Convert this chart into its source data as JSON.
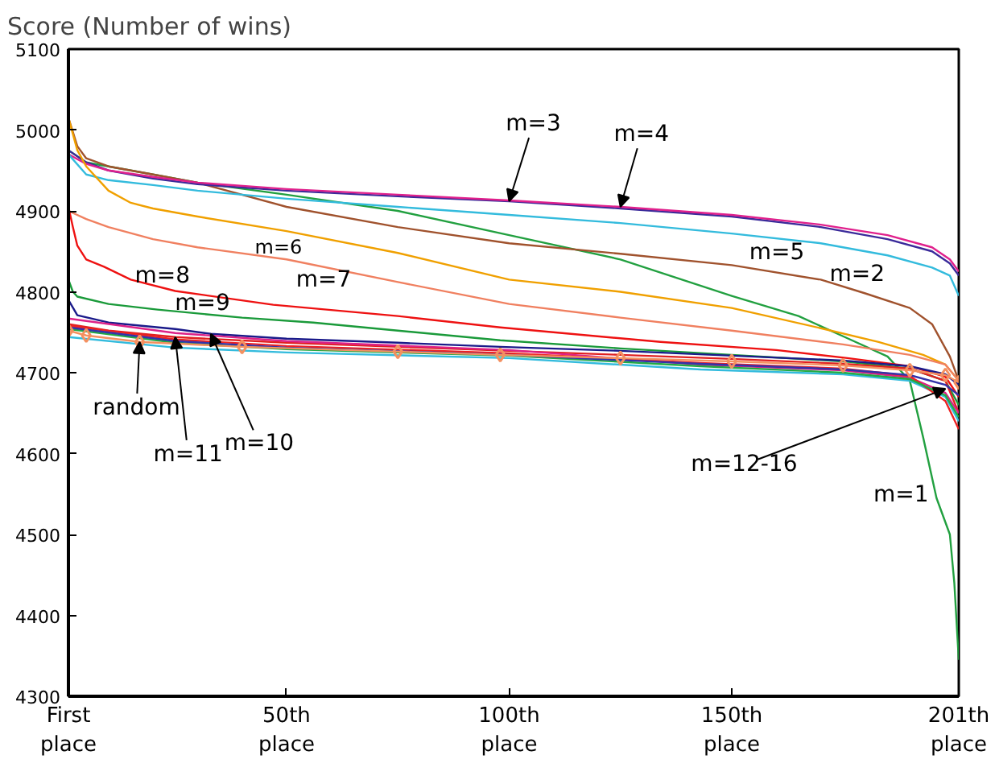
{
  "chart_data": {
    "type": "line",
    "ylabel": "Score (Number of wins)",
    "xlim": [
      1,
      201
    ],
    "xticks": [
      {
        "value": 1,
        "label": "First\nplace"
      },
      {
        "value": 50,
        "label": "50th\nplace"
      },
      {
        "value": 100,
        "label": "100th\nplace"
      },
      {
        "value": 150,
        "label": "150th\nplace"
      },
      {
        "value": 201,
        "label": "201th\nplace"
      }
    ],
    "ylim": [
      4300,
      5100
    ],
    "yticks": [
      4300,
      4400,
      4500,
      4600,
      4700,
      4800,
      4900,
      5000,
      5100
    ],
    "grid": false,
    "line_style": "solid",
    "series": [
      {
        "name": "m=1",
        "color": "#22a040",
        "x": [
          1,
          5,
          10,
          20,
          30,
          50,
          75,
          100,
          125,
          150,
          165,
          175,
          185,
          190,
          193,
          196,
          199,
          200,
          201
        ],
        "values": [
          4975,
          4960,
          4955,
          4945,
          4935,
          4920,
          4900,
          4870,
          4840,
          4795,
          4770,
          4745,
          4720,
          4690,
          4620,
          4545,
          4500,
          4440,
          4345
        ]
      },
      {
        "name": "m=2",
        "color": "#a0522d",
        "x": [
          1,
          3,
          5,
          10,
          20,
          30,
          50,
          75,
          100,
          125,
          150,
          170,
          180,
          190,
          195,
          199,
          201
        ],
        "values": [
          5015,
          4980,
          4965,
          4955,
          4945,
          4935,
          4905,
          4880,
          4860,
          4847,
          4833,
          4815,
          4798,
          4780,
          4760,
          4720,
          4690
        ]
      },
      {
        "name": "m=3",
        "color": "#3a2a9a",
        "x": [
          1,
          5,
          10,
          20,
          30,
          50,
          75,
          100,
          125,
          150,
          170,
          185,
          195,
          199,
          201
        ],
        "values": [
          4975,
          4960,
          4950,
          4940,
          4933,
          4925,
          4918,
          4912,
          4903,
          4893,
          4880,
          4865,
          4850,
          4835,
          4820
        ]
      },
      {
        "name": "m=4",
        "color": "#e0208c",
        "x": [
          1,
          5,
          10,
          20,
          30,
          50,
          75,
          100,
          125,
          150,
          170,
          185,
          195,
          199,
          201
        ],
        "values": [
          4970,
          4958,
          4950,
          4942,
          4935,
          4927,
          4920,
          4913,
          4905,
          4895,
          4883,
          4870,
          4855,
          4840,
          4825
        ]
      },
      {
        "name": "m=5",
        "color": "#33bbdd",
        "x": [
          1,
          5,
          10,
          20,
          30,
          50,
          75,
          100,
          125,
          150,
          170,
          185,
          195,
          199,
          201
        ],
        "values": [
          4970,
          4945,
          4938,
          4932,
          4925,
          4915,
          4905,
          4895,
          4885,
          4872,
          4860,
          4845,
          4830,
          4820,
          4795
        ]
      },
      {
        "name": "m=6",
        "color": "#f0a000",
        "x": [
          1,
          3,
          5,
          10,
          15,
          20,
          30,
          50,
          75,
          100,
          125,
          150,
          170,
          183,
          193,
          198,
          201
        ],
        "values": [
          5015,
          4975,
          4955,
          4925,
          4910,
          4903,
          4893,
          4875,
          4848,
          4815,
          4800,
          4780,
          4755,
          4738,
          4722,
          4710,
          4690
        ]
      },
      {
        "name": "m=7",
        "color": "#f08060",
        "x": [
          1,
          5,
          10,
          20,
          30,
          50,
          75,
          100,
          125,
          150,
          175,
          190,
          198,
          201
        ],
        "values": [
          4900,
          4890,
          4880,
          4865,
          4855,
          4840,
          4812,
          4785,
          4768,
          4752,
          4735,
          4722,
          4710,
          4690
        ]
      },
      {
        "name": "m=8",
        "color": "#ee1111",
        "x": [
          1,
          2,
          3,
          5,
          9,
          15,
          25,
          47,
          75,
          98,
          134,
          160,
          176,
          190,
          198,
          201
        ],
        "values": [
          4905,
          4880,
          4857,
          4840,
          4831,
          4815,
          4801,
          4784,
          4770,
          4756,
          4738,
          4728,
          4718,
          4708,
          4695,
          4670
        ]
      },
      {
        "name": "m=9",
        "color": "#1a9a3a",
        "x": [
          1,
          2,
          3,
          10,
          21,
          40,
          56,
          75,
          98,
          125,
          150,
          175,
          190,
          198,
          201
        ],
        "values": [
          4815,
          4800,
          4794,
          4785,
          4778,
          4768,
          4762,
          4752,
          4740,
          4730,
          4722,
          4714,
          4705,
          4690,
          4660
        ]
      },
      {
        "name": "m=10",
        "color": "#1a1a8a",
        "x": [
          1,
          3,
          10,
          25,
          33,
          50,
          75,
          98,
          125,
          150,
          175,
          190,
          198,
          201
        ],
        "values": [
          4790,
          4771,
          4762,
          4754,
          4748,
          4742,
          4737,
          4732,
          4727,
          4721,
          4715,
          4708,
          4698,
          4685
        ]
      },
      {
        "name": "m=11",
        "color": "#e02020",
        "x": [
          1,
          10,
          25,
          50,
          75,
          100,
          125,
          150,
          175,
          190,
          198,
          201
        ],
        "values": [
          4760,
          4752,
          4744,
          4737,
          4732,
          4727,
          4722,
          4717,
          4711,
          4705,
          4690,
          4650
        ]
      },
      {
        "color": "#33bbdd",
        "x": [
          1,
          25,
          50,
          100,
          143,
          175,
          190,
          198,
          201
        ],
        "values": [
          4744,
          4731,
          4725,
          4718,
          4704,
          4698,
          4690,
          4670,
          4640
        ]
      },
      {
        "color": "#dd2288",
        "x": [
          1,
          25,
          50,
          100,
          143,
          175,
          190,
          198,
          201
        ],
        "values": [
          4767,
          4749,
          4739,
          4728,
          4710,
          4703,
          4694,
          4675,
          4650
        ]
      },
      {
        "color": "#ee2222",
        "x": [
          1,
          25,
          50,
          100,
          143,
          175,
          190,
          198,
          201
        ],
        "values": [
          4758,
          4741,
          4733,
          4724,
          4712,
          4705,
          4696,
          4665,
          4630
        ]
      },
      {
        "color": "#22aa44",
        "x": [
          1,
          25,
          50,
          100,
          143,
          175,
          190,
          198,
          201
        ],
        "values": [
          4754,
          4737,
          4729,
          4721,
          4708,
          4700,
          4692,
          4672,
          4645
        ]
      },
      {
        "color": "#3333aa",
        "x": [
          1,
          25,
          50,
          100,
          143,
          175,
          190,
          198,
          201
        ],
        "values": [
          4756,
          4739,
          4731,
          4722,
          4711,
          4704,
          4697,
          4685,
          4672
        ]
      },
      {
        "name": "random",
        "color": "#f49060",
        "marker": "diamond",
        "x": [
          1,
          5,
          17,
          40,
          75,
          98,
          125,
          150,
          175,
          190,
          198,
          201
        ],
        "values": [
          4752,
          4746,
          4738,
          4732,
          4726,
          4722,
          4718,
          4714,
          4709,
          4703,
          4697,
          4688
        ]
      }
    ],
    "annotations": [
      {
        "text": "m=12-16",
        "x": 198,
        "y": 4680
      }
    ]
  }
}
